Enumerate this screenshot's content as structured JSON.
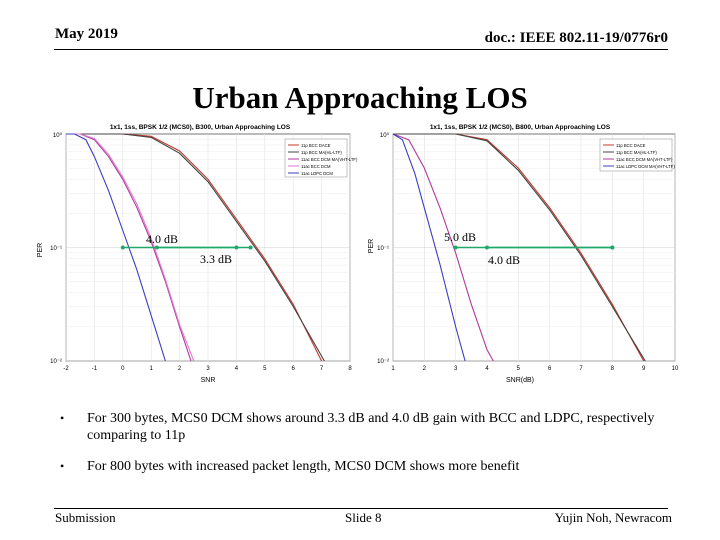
{
  "header": {
    "date": "May 2019",
    "doc_id": "doc.: IEEE 802.11-19/0776r0"
  },
  "title": "Urban Approaching LOS",
  "charts": [
    {
      "title": "1x1, 1ss, BPSK 1/2 (MCS0), B300, Urban Approaching LOS",
      "ylabel": "PER",
      "xlabel": "SNR",
      "yticks": [
        "10⁰",
        "10⁻¹",
        "10⁻²"
      ],
      "xticks": [
        "-2",
        "-1",
        "0",
        "1",
        "2",
        "3",
        "4",
        "5",
        "6",
        "7",
        "8"
      ],
      "legend": [
        "11p BCC DACE",
        "11p BCC MA(HL-LTF)",
        "11ac BCC DCM MA(VHT-LTF)",
        "11ac BCC DCM",
        "11ac LDPC DCM"
      ],
      "annotations": [
        "4.0 dB",
        "3.3 dB"
      ]
    },
    {
      "title": "1x1, 1ss, BPSK 1/2 (MCS0), B800, Urban Approaching LOS",
      "ylabel": "PER",
      "xlabel": "SNR(dB)",
      "yticks": [
        "10⁰",
        "10⁻¹",
        "10⁻²"
      ],
      "xticks": [
        "1",
        "2",
        "3",
        "4",
        "5",
        "6",
        "7",
        "8",
        "9",
        "10"
      ],
      "legend": [
        "11p BCC DACE",
        "11p BCC MA(HL-LTF)",
        "11ac BCC DCM MA(VHT-LTF)",
        "11ac LDPC DCM MA(VHT-LTF)"
      ],
      "annotations": [
        "5.0 dB",
        "4.0 dB"
      ]
    }
  ],
  "chart_data": [
    {
      "type": "line",
      "title": "1x1, 1ss, BPSK 1/2 (MCS0), B300, Urban Approaching LOS",
      "xlabel": "SNR",
      "ylabel": "PER",
      "xlim": [
        -2,
        8
      ],
      "ylim_log10": [
        -2,
        0
      ],
      "series": [
        {
          "name": "11p BCC DACE",
          "color": "#c0392b",
          "x": [
            -2,
            0,
            1,
            2,
            3,
            4,
            5,
            6,
            7
          ],
          "log10_per": [
            0,
            0,
            -0.02,
            -0.15,
            -0.4,
            -0.75,
            -1.1,
            -1.5,
            -2
          ]
        },
        {
          "name": "11p BCC MA(HL-LTF)",
          "color": "#444444",
          "x": [
            -2,
            0,
            1,
            2,
            3,
            4,
            5,
            6,
            7.1
          ],
          "log10_per": [
            0,
            0,
            -0.03,
            -0.17,
            -0.42,
            -0.77,
            -1.12,
            -1.52,
            -2
          ]
        },
        {
          "name": "11ac BCC DCM MA(VHT-LTF)",
          "color": "#b03a9e",
          "x": [
            -2,
            -1.5,
            -1,
            -0.5,
            0,
            0.5,
            1,
            1.5,
            2,
            2.4
          ],
          "log10_per": [
            0,
            0,
            -0.05,
            -0.2,
            -0.4,
            -0.65,
            -0.95,
            -1.3,
            -1.7,
            -2
          ]
        },
        {
          "name": "11ac BCC DCM",
          "color": "#e07ad0",
          "x": [
            -2,
            -1.5,
            -1,
            -0.5,
            0,
            0.5,
            1,
            1.5,
            2,
            2.5
          ],
          "log10_per": [
            0,
            0,
            -0.04,
            -0.18,
            -0.38,
            -0.62,
            -0.92,
            -1.28,
            -1.68,
            -2
          ]
        },
        {
          "name": "11ac LDPC DCM",
          "color": "#3b3fbf",
          "x": [
            -2,
            -1.7,
            -1.3,
            -1,
            -0.5,
            0,
            0.5,
            1,
            1.5
          ],
          "log10_per": [
            0,
            0,
            -0.05,
            -0.2,
            -0.5,
            -0.85,
            -1.2,
            -1.6,
            -2
          ]
        }
      ],
      "annotations": [
        {
          "text": "4.0 dB",
          "x1": 0,
          "x2": 4.0,
          "log10_per": -1
        },
        {
          "text": "3.3 dB",
          "x1": 1.2,
          "x2": 4.5,
          "log10_per": -1
        }
      ]
    },
    {
      "type": "line",
      "title": "1x1, 1ss, BPSK 1/2 (MCS0), B800, Urban Approaching LOS",
      "xlabel": "SNR(dB)",
      "ylabel": "PER",
      "xlim": [
        1,
        10
      ],
      "ylim_log10": [
        -2,
        0
      ],
      "series": [
        {
          "name": "11p BCC DACE",
          "color": "#c0392b",
          "x": [
            1,
            3,
            4,
            5,
            6,
            7,
            8,
            9
          ],
          "log10_per": [
            0,
            0,
            -0.05,
            -0.3,
            -0.65,
            -1.05,
            -1.5,
            -2
          ]
        },
        {
          "name": "11p BCC MA(HL-LTF)",
          "color": "#444444",
          "x": [
            1,
            3,
            4,
            5,
            6,
            7,
            8,
            9.05
          ],
          "log10_per": [
            0,
            0,
            -0.06,
            -0.32,
            -0.67,
            -1.07,
            -1.52,
            -2
          ]
        },
        {
          "name": "11ac BCC DCM MA(VHT-LTF)",
          "color": "#b03a9e",
          "x": [
            1,
            1.5,
            2,
            2.5,
            3,
            3.5,
            4,
            4.2
          ],
          "log10_per": [
            0,
            -0.05,
            -0.3,
            -0.65,
            -1.05,
            -1.5,
            -1.9,
            -2
          ]
        },
        {
          "name": "11ac LDPC DCM MA(VHT-LTF)",
          "color": "#3b3fbf",
          "x": [
            1,
            1.3,
            1.7,
            2,
            2.5,
            3,
            3.3
          ],
          "log10_per": [
            0,
            -0.05,
            -0.35,
            -0.65,
            -1.15,
            -1.7,
            -2
          ]
        }
      ],
      "annotations": [
        {
          "text": "5.0 dB",
          "x1": 3,
          "x2": 8,
          "log10_per": -1
        },
        {
          "text": "4.0 dB",
          "x1": 4,
          "x2": 8,
          "log10_per": -1
        }
      ]
    }
  ],
  "bullets": [
    {
      "marker": "•",
      "text": "For 300 bytes, MCS0 DCM shows around 3.3 dB and 4.0 dB gain with BCC and LDPC, respectively comparing to 11p"
    },
    {
      "marker": "•",
      "text": "For 800 bytes with increased packet length, MCS0 DCM shows more benefit"
    }
  ],
  "footer": {
    "left": "Submission",
    "center": "Slide 8",
    "right": "Yujin Noh, Newracom"
  }
}
